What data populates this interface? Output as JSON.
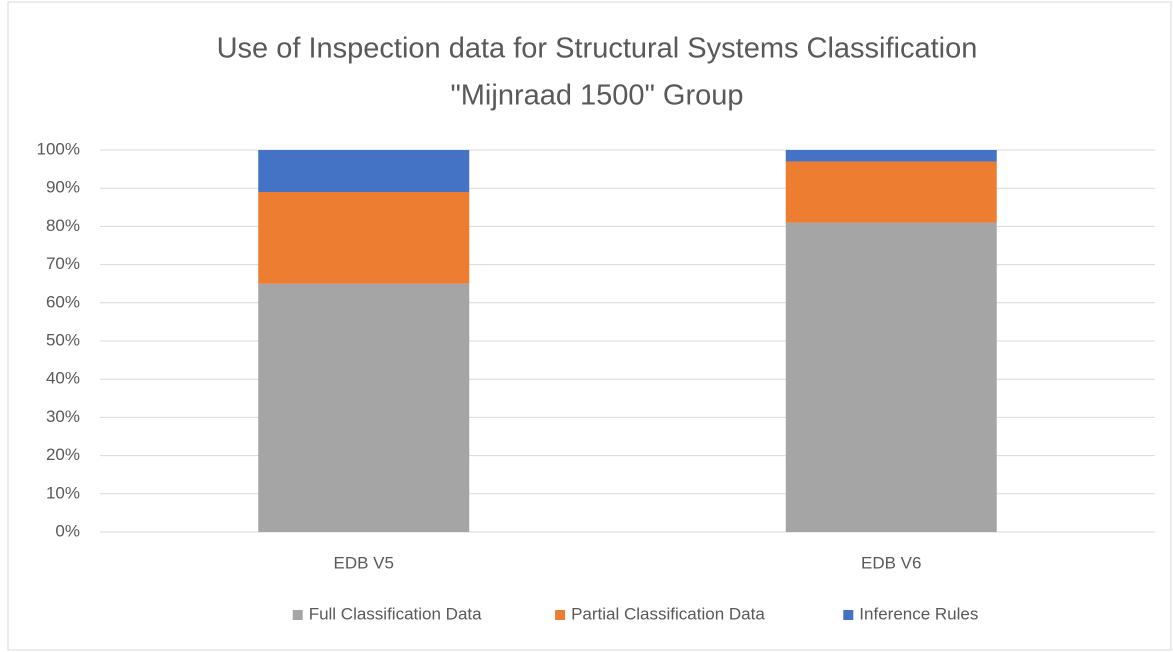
{
  "chart_data": {
    "type": "stacked_bar",
    "title": [
      "Use of Inspection data for Structural Systems Classification",
      "\"Mijnraad 1500\" Group"
    ],
    "categories": [
      "EDB V5",
      "EDB V6"
    ],
    "series": [
      {
        "name": "Full Classification Data",
        "color": "#a5a5a5",
        "values": [
          65,
          81
        ]
      },
      {
        "name": "Partial Classification Data",
        "color": "#ed7d31",
        "values": [
          24,
          16
        ]
      },
      {
        "name": "Inference Rules",
        "color": "#4472c4",
        "values": [
          11,
          3
        ]
      }
    ],
    "ylim": [
      0,
      100
    ],
    "yticks": [
      {
        "value": 0,
        "label": "0%"
      },
      {
        "value": 10,
        "label": "10%"
      },
      {
        "value": 20,
        "label": "20%"
      },
      {
        "value": 30,
        "label": "30%"
      },
      {
        "value": 40,
        "label": "40%"
      },
      {
        "value": 50,
        "label": "50%"
      },
      {
        "value": 60,
        "label": "60%"
      },
      {
        "value": 70,
        "label": "70%"
      },
      {
        "value": 80,
        "label": "80%"
      },
      {
        "value": 90,
        "label": "90%"
      },
      {
        "value": 100,
        "label": "100%"
      }
    ],
    "grid": true,
    "legend": "bottom"
  }
}
